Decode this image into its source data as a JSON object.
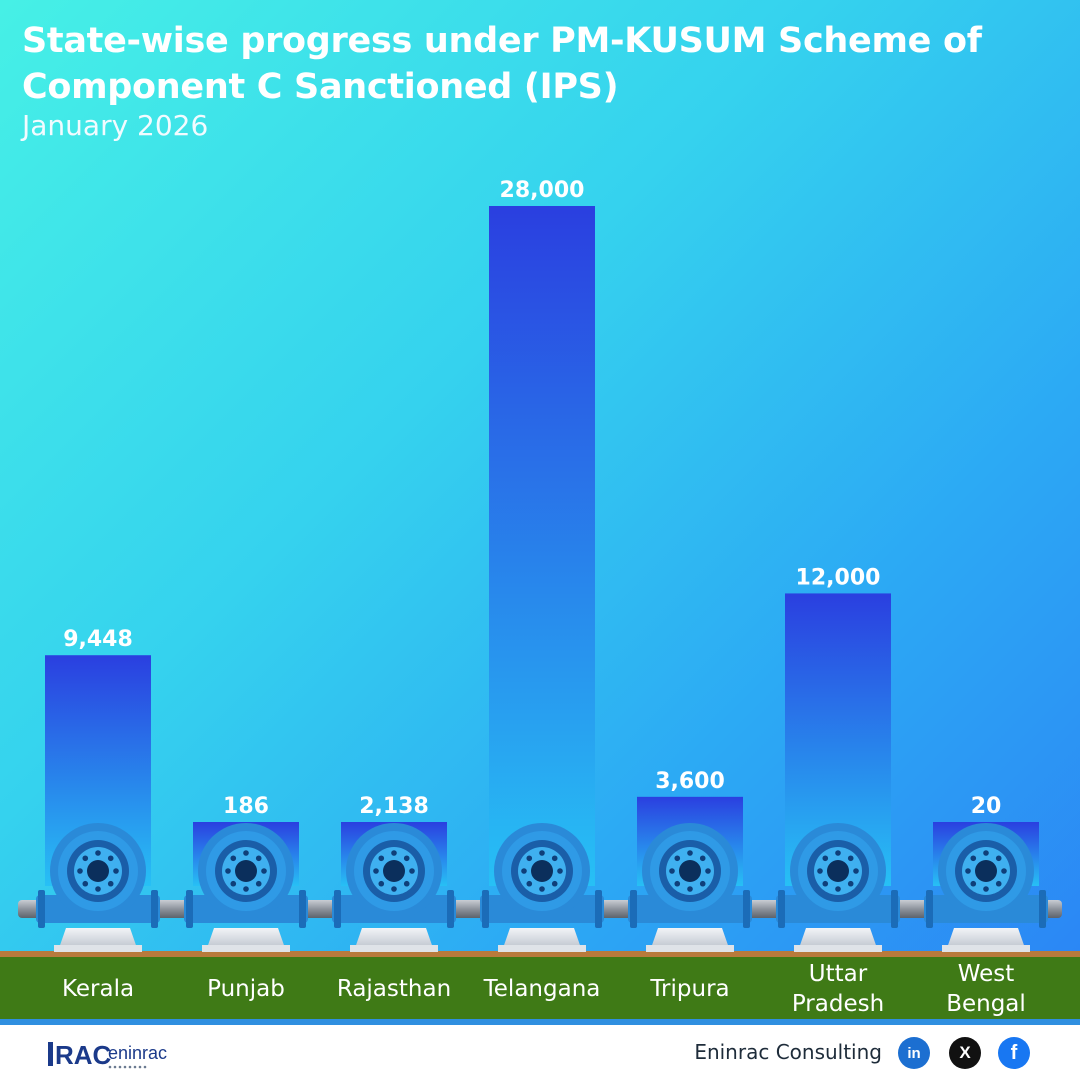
{
  "chart_data": {
    "type": "bar",
    "title": "State-wise progress under PM-KUSUM Scheme of Component C Sanctioned (IPS)",
    "subtitle": "January 2026",
    "categories": [
      "Kerala",
      "Punjab",
      "Rajasthan",
      "Telangana",
      "Tripura",
      "Uttar Pradesh",
      "West Bengal"
    ],
    "values": [
      9448,
      186,
      2138,
      28000,
      3600,
      12000,
      20
    ],
    "value_labels": [
      "9,448",
      "186",
      "2,138",
      "28,000",
      "3,600",
      "12,000",
      "20"
    ],
    "bar_color_top": "#2a3fe0",
    "bar_color_bottom": "#27c0f5",
    "grid": false,
    "legend": "none"
  },
  "footer": {
    "brand": "Eninrac Consulting",
    "logo_text": "RAC eninrac",
    "social": [
      {
        "icon": "linkedin-icon",
        "glyph": "in"
      },
      {
        "icon": "x-icon",
        "glyph": "X"
      },
      {
        "icon": "facebook-icon",
        "glyph": "f"
      }
    ]
  },
  "colors": {
    "ground": "#3f7a16",
    "soil": "#b87a3c",
    "pump_body": "#2a8ad8",
    "pump_face": "#1a5ea8"
  }
}
